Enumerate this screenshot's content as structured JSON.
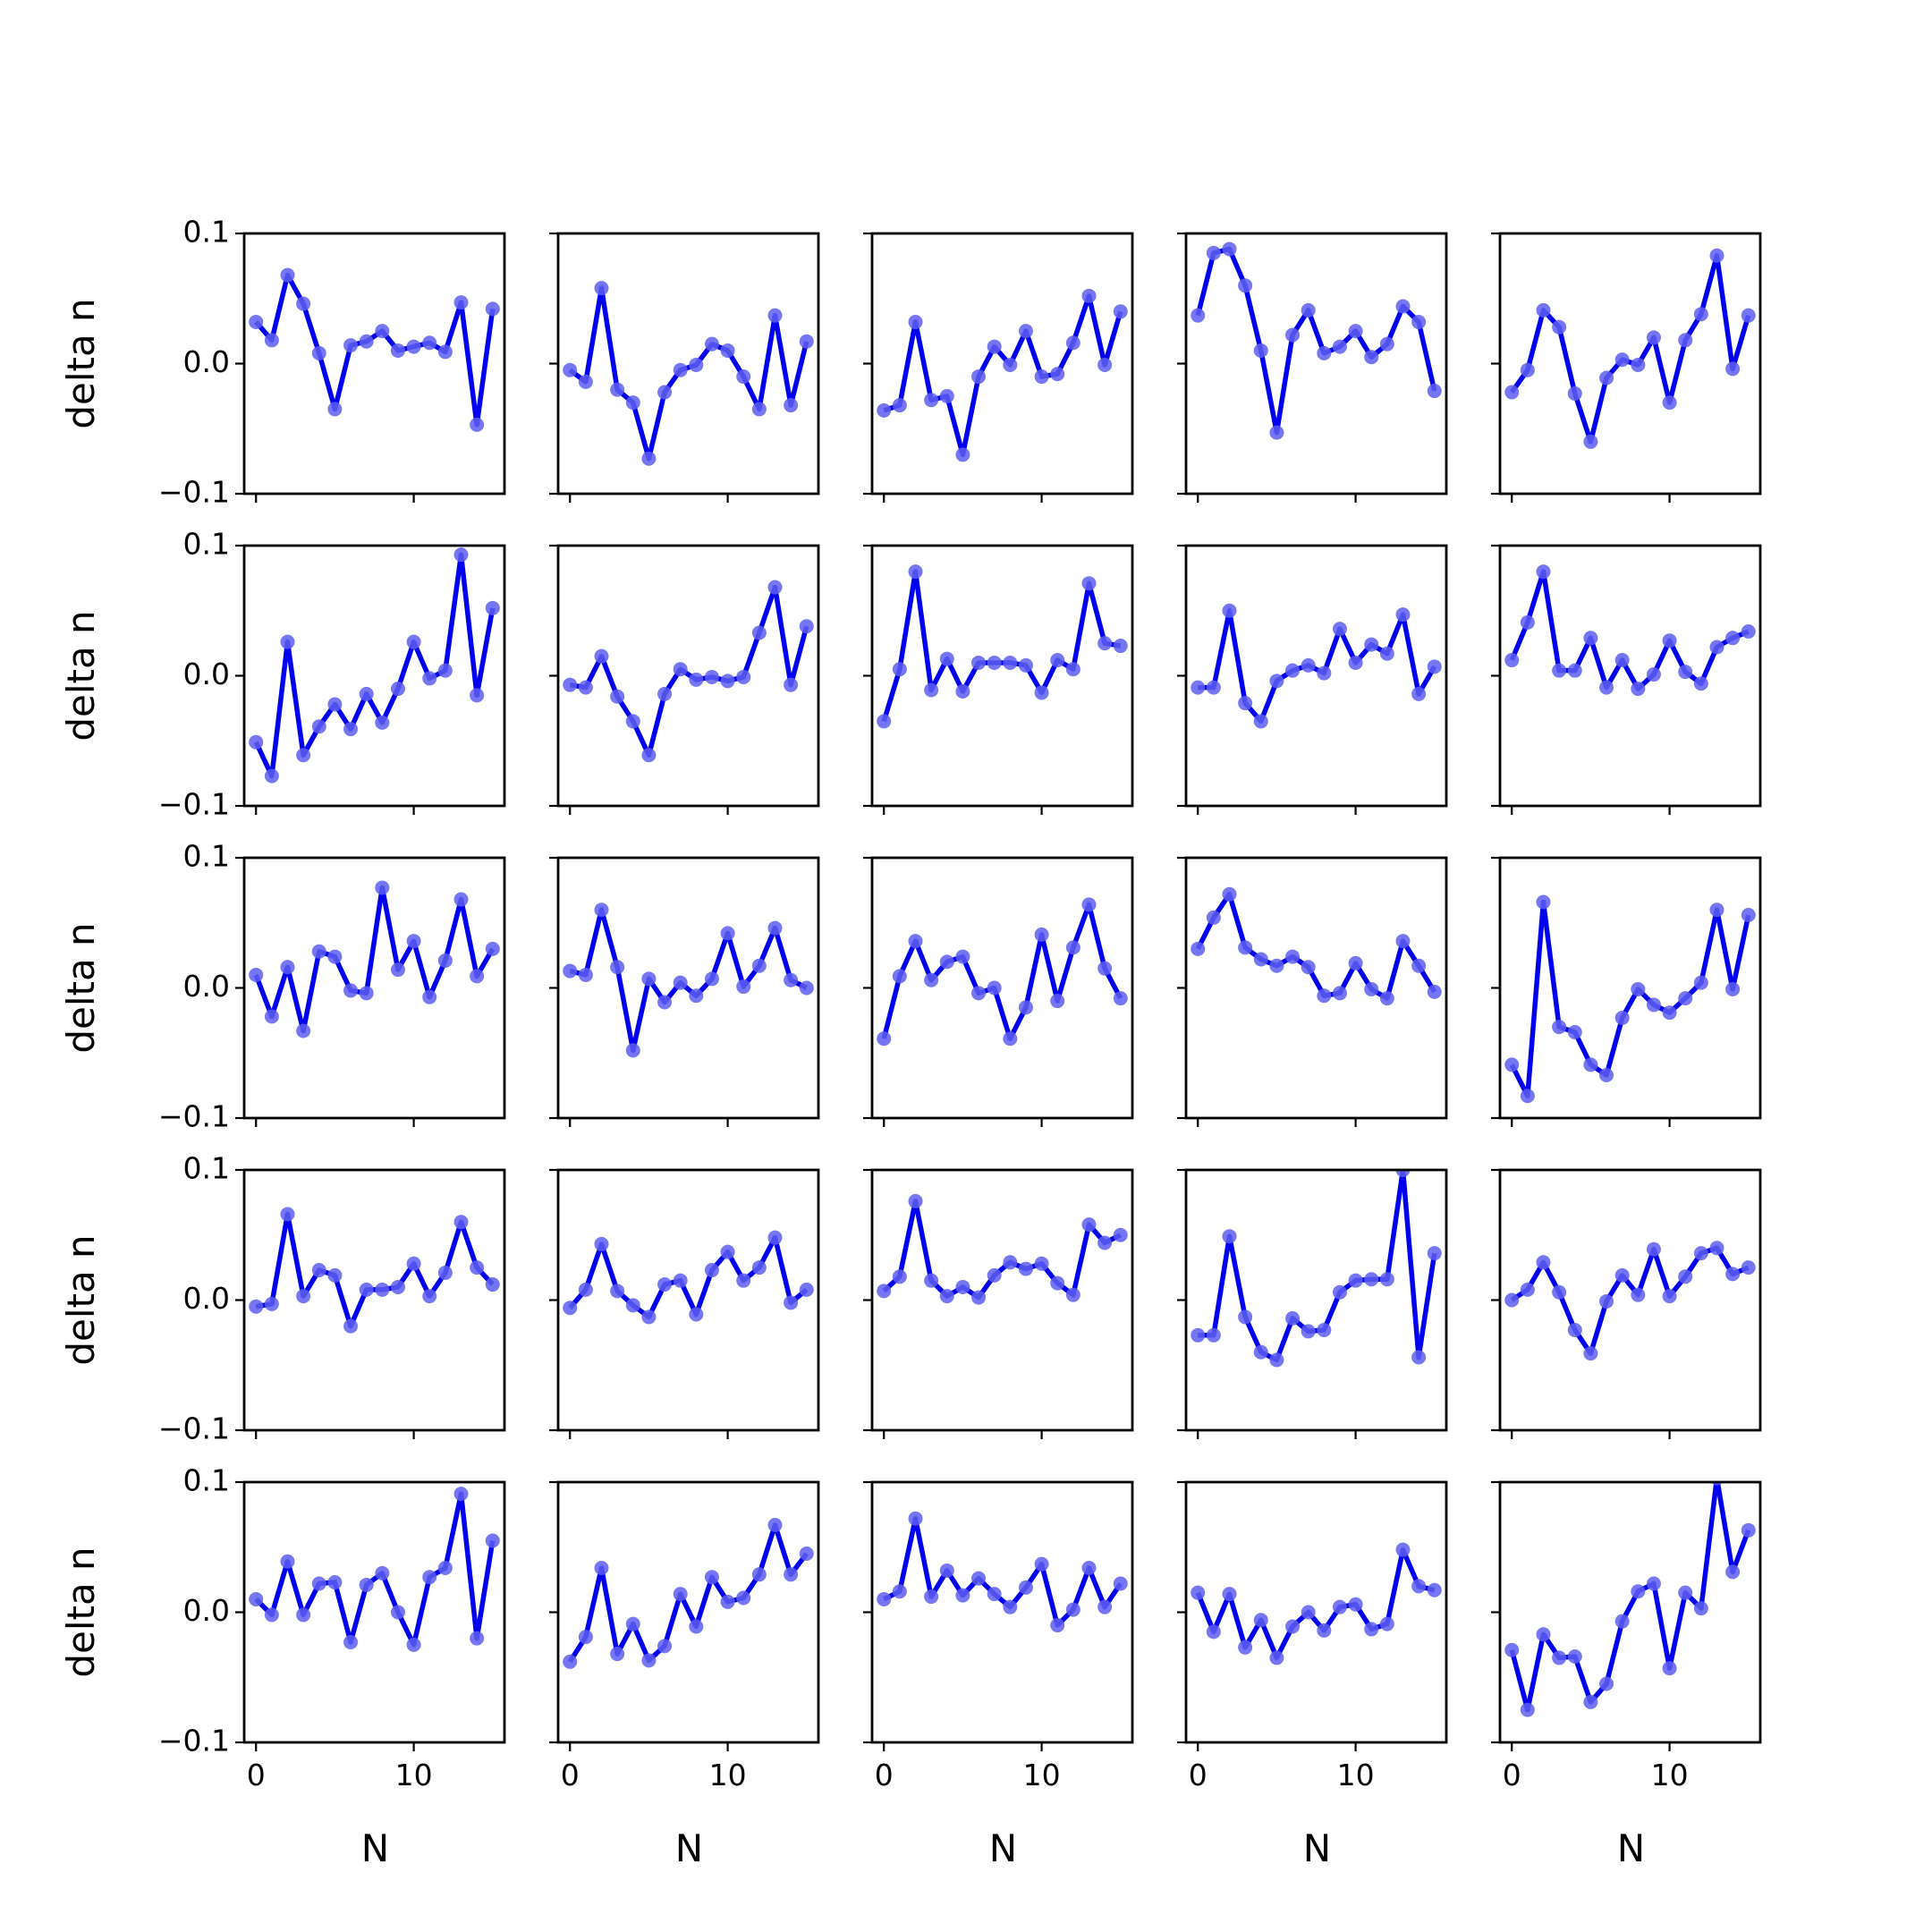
{
  "chart_data": {
    "type": "line",
    "layout": "5x5 grid of subplots",
    "xlabel": "N",
    "ylabel": "delta n",
    "xlim": [
      -0.75,
      15.75
    ],
    "ylim": [
      -0.1,
      0.1
    ],
    "xticks": [
      0,
      10
    ],
    "xtick_labels": [
      "0",
      "10"
    ],
    "yticks": [
      -0.1,
      0.0,
      0.1
    ],
    "ytick_labels": [
      "−0.1",
      "0.0",
      "0.1"
    ],
    "line_color": "#0000ee",
    "marker_color": "#5e5ef0",
    "grid": false,
    "x": [
      0,
      1,
      2,
      3,
      4,
      5,
      6,
      7,
      8,
      9,
      10,
      11,
      12,
      13,
      14,
      15
    ],
    "panels": [
      {
        "row": 1,
        "col": 1,
        "values": [
          0.032,
          0.018,
          0.068,
          0.046,
          0.008,
          -0.035,
          0.014,
          0.017,
          0.025,
          0.01,
          0.013,
          0.016,
          0.009,
          0.047,
          -0.047,
          0.042
        ]
      },
      {
        "row": 1,
        "col": 2,
        "values": [
          -0.005,
          -0.014,
          0.058,
          -0.02,
          -0.03,
          -0.073,
          -0.022,
          -0.005,
          -0.001,
          0.015,
          0.01,
          -0.01,
          -0.035,
          0.037,
          -0.032,
          0.017
        ]
      },
      {
        "row": 1,
        "col": 3,
        "values": [
          -0.036,
          -0.032,
          0.032,
          -0.028,
          -0.025,
          -0.07,
          -0.01,
          0.013,
          -0.001,
          0.025,
          -0.01,
          -0.008,
          0.016,
          0.052,
          -0.001,
          0.04
        ]
      },
      {
        "row": 1,
        "col": 4,
        "values": [
          0.037,
          0.085,
          0.088,
          0.06,
          0.01,
          -0.053,
          0.022,
          0.041,
          0.008,
          0.013,
          0.025,
          0.005,
          0.015,
          0.044,
          0.032,
          -0.021
        ]
      },
      {
        "row": 1,
        "col": 5,
        "values": [
          -0.022,
          -0.005,
          0.041,
          0.028,
          -0.023,
          -0.06,
          -0.011,
          0.003,
          -0.001,
          0.02,
          -0.03,
          0.018,
          0.038,
          0.083,
          -0.004,
          0.037
        ]
      },
      {
        "row": 2,
        "col": 1,
        "values": [
          -0.051,
          -0.077,
          0.026,
          -0.061,
          -0.039,
          -0.022,
          -0.041,
          -0.014,
          -0.036,
          -0.01,
          0.026,
          -0.002,
          0.004,
          0.093,
          -0.015,
          0.052
        ]
      },
      {
        "row": 2,
        "col": 2,
        "values": [
          -0.007,
          -0.009,
          0.015,
          -0.016,
          -0.035,
          -0.061,
          -0.014,
          0.005,
          -0.003,
          -0.001,
          -0.004,
          -0.001,
          0.033,
          0.068,
          -0.007,
          0.038
        ]
      },
      {
        "row": 2,
        "col": 3,
        "values": [
          -0.035,
          0.005,
          0.08,
          -0.011,
          0.013,
          -0.012,
          0.01,
          0.01,
          0.01,
          0.008,
          -0.013,
          0.012,
          0.005,
          0.071,
          0.025,
          0.023
        ]
      },
      {
        "row": 2,
        "col": 4,
        "values": [
          -0.009,
          -0.009,
          0.05,
          -0.021,
          -0.035,
          -0.004,
          0.004,
          0.008,
          0.002,
          0.036,
          0.01,
          0.024,
          0.017,
          0.047,
          -0.014,
          0.007
        ]
      },
      {
        "row": 2,
        "col": 5,
        "values": [
          0.012,
          0.041,
          0.08,
          0.004,
          0.004,
          0.029,
          -0.009,
          0.012,
          -0.01,
          0.001,
          0.027,
          0.003,
          -0.006,
          0.022,
          0.029,
          0.034
        ]
      },
      {
        "row": 3,
        "col": 1,
        "values": [
          0.01,
          -0.022,
          0.016,
          -0.033,
          0.028,
          0.024,
          -0.002,
          -0.004,
          0.077,
          0.014,
          0.036,
          -0.007,
          0.021,
          0.068,
          0.009,
          0.03
        ]
      },
      {
        "row": 3,
        "col": 2,
        "values": [
          0.013,
          0.01,
          0.06,
          0.016,
          -0.048,
          0.007,
          -0.011,
          0.004,
          -0.006,
          0.007,
          0.042,
          0.001,
          0.017,
          0.046,
          0.006,
          0.0
        ]
      },
      {
        "row": 3,
        "col": 3,
        "values": [
          -0.039,
          0.009,
          0.036,
          0.006,
          0.02,
          0.024,
          -0.004,
          0.0,
          -0.039,
          -0.015,
          0.041,
          -0.01,
          0.031,
          0.064,
          0.015,
          -0.008
        ]
      },
      {
        "row": 3,
        "col": 4,
        "values": [
          0.03,
          0.054,
          0.072,
          0.031,
          0.022,
          0.017,
          0.024,
          0.016,
          -0.006,
          -0.004,
          0.019,
          -0.001,
          -0.008,
          0.036,
          0.017,
          -0.003
        ]
      },
      {
        "row": 3,
        "col": 5,
        "values": [
          -0.059,
          -0.083,
          0.066,
          -0.03,
          -0.034,
          -0.059,
          -0.067,
          -0.023,
          -0.001,
          -0.013,
          -0.019,
          -0.008,
          0.004,
          0.06,
          -0.001,
          0.056
        ]
      },
      {
        "row": 4,
        "col": 1,
        "values": [
          -0.005,
          -0.003,
          0.066,
          0.003,
          0.023,
          0.019,
          -0.02,
          0.008,
          0.008,
          0.01,
          0.028,
          0.003,
          0.021,
          0.06,
          0.025,
          0.012
        ]
      },
      {
        "row": 4,
        "col": 2,
        "values": [
          -0.006,
          0.008,
          0.043,
          0.007,
          -0.004,
          -0.013,
          0.012,
          0.015,
          -0.011,
          0.023,
          0.037,
          0.015,
          0.025,
          0.048,
          -0.002,
          0.008
        ]
      },
      {
        "row": 4,
        "col": 3,
        "values": [
          0.007,
          0.018,
          0.076,
          0.015,
          0.003,
          0.01,
          0.002,
          0.019,
          0.029,
          0.024,
          0.028,
          0.013,
          0.004,
          0.058,
          0.044,
          0.05
        ]
      },
      {
        "row": 4,
        "col": 4,
        "values": [
          -0.027,
          -0.027,
          0.049,
          -0.013,
          -0.04,
          -0.046,
          -0.014,
          -0.024,
          -0.023,
          0.006,
          0.015,
          0.016,
          0.016,
          0.1,
          -0.044,
          0.036
        ]
      },
      {
        "row": 4,
        "col": 5,
        "values": [
          0.0,
          0.008,
          0.029,
          0.006,
          -0.023,
          -0.041,
          -0.001,
          0.019,
          0.004,
          0.039,
          0.003,
          0.018,
          0.036,
          0.04,
          0.02,
          0.025
        ]
      },
      {
        "row": 5,
        "col": 1,
        "values": [
          0.01,
          -0.002,
          0.039,
          -0.002,
          0.022,
          0.023,
          -0.023,
          0.021,
          0.03,
          0.0,
          -0.025,
          0.027,
          0.034,
          0.091,
          -0.02,
          0.055
        ]
      },
      {
        "row": 5,
        "col": 2,
        "values": [
          -0.038,
          -0.019,
          0.034,
          -0.032,
          -0.009,
          -0.037,
          -0.026,
          0.014,
          -0.011,
          0.027,
          0.008,
          0.011,
          0.029,
          0.067,
          0.029,
          0.045
        ]
      },
      {
        "row": 5,
        "col": 3,
        "values": [
          0.01,
          0.016,
          0.072,
          0.012,
          0.032,
          0.013,
          0.026,
          0.014,
          0.004,
          0.019,
          0.037,
          -0.01,
          0.002,
          0.034,
          0.004,
          0.022
        ]
      },
      {
        "row": 5,
        "col": 4,
        "values": [
          0.015,
          -0.015,
          0.014,
          -0.027,
          -0.006,
          -0.035,
          -0.011,
          0.0,
          -0.014,
          0.004,
          0.006,
          -0.013,
          -0.009,
          0.048,
          0.02,
          0.017
        ]
      },
      {
        "row": 5,
        "col": 5,
        "values": [
          -0.029,
          -0.075,
          -0.017,
          -0.035,
          -0.034,
          -0.069,
          -0.055,
          -0.007,
          0.016,
          0.022,
          -0.043,
          0.015,
          0.003,
          0.103,
          0.031,
          0.063
        ]
      }
    ]
  }
}
